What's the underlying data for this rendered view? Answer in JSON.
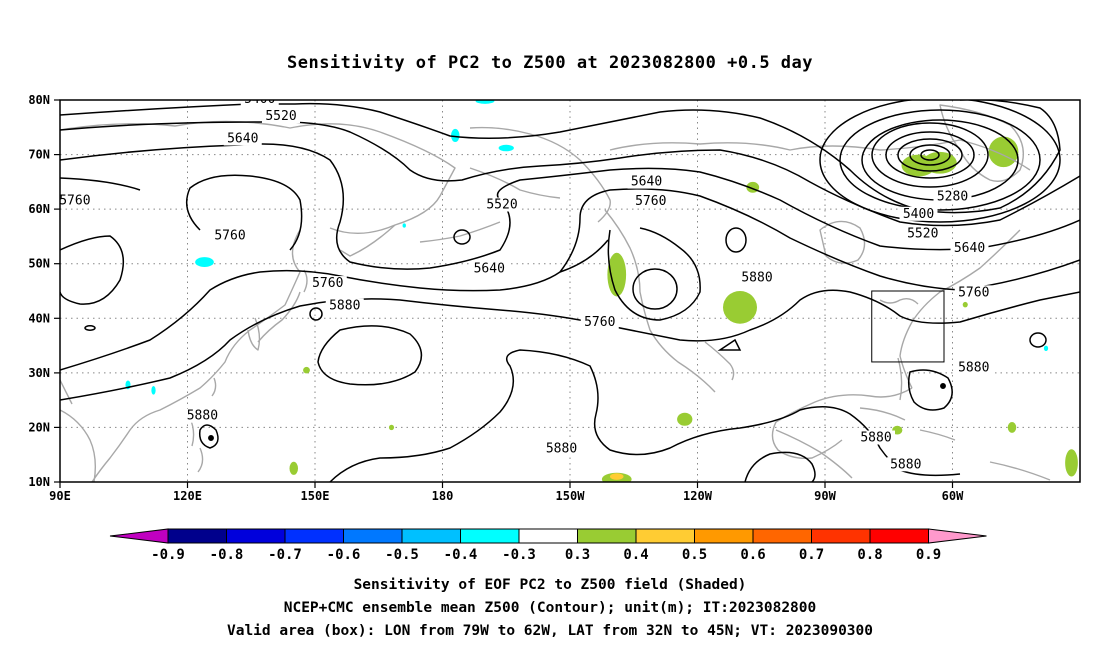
{
  "chart_data": {
    "type": "contour-map",
    "title": "Sensitivity of PC2 to Z500 at 2023082800 +0.5 day",
    "x_ticks": [
      "90E",
      "120E",
      "150E",
      "180",
      "150W",
      "120W",
      "90W",
      "60W"
    ],
    "y_ticks": [
      "10N",
      "20N",
      "30N",
      "40N",
      "50N",
      "60N",
      "70N",
      "80N"
    ],
    "lon_range": [
      90,
      330
    ],
    "lat_range": [
      10,
      80
    ],
    "grid": "dotted",
    "colorbar": {
      "labels": [
        "-0.9",
        "-0.8",
        "-0.7",
        "-0.6",
        "-0.5",
        "-0.4",
        "-0.3",
        "0.3",
        "0.4",
        "0.5",
        "0.6",
        "0.7",
        "0.8",
        "0.9"
      ],
      "colors": [
        "#c000c0",
        "#00008c",
        "#0000dc",
        "#0030ff",
        "#0078ff",
        "#00c0ff",
        "#00ffff",
        "#ffffff",
        "#99cc33",
        "#ffcc33",
        "#ff9900",
        "#ff6600",
        "#ff3300",
        "#ff0000",
        "#ff99cc"
      ]
    },
    "contour_labels": [
      {
        "text": "5400",
        "lon": 137,
        "lat": 79.6
      },
      {
        "text": "5520",
        "lon": 142,
        "lat": 76.5
      },
      {
        "text": "5640",
        "lon": 133,
        "lat": 72.4
      },
      {
        "text": "5760",
        "lon": 93.5,
        "lat": 61.0
      },
      {
        "text": "5760",
        "lon": 130,
        "lat": 54.6
      },
      {
        "text": "5520",
        "lon": 194,
        "lat": 60.3
      },
      {
        "text": "5640",
        "lon": 228,
        "lat": 64.5
      },
      {
        "text": "5760",
        "lon": 229,
        "lat": 60.9
      },
      {
        "text": "5280",
        "lon": 300,
        "lat": 61.8
      },
      {
        "text": "5400",
        "lon": 292,
        "lat": 58.6
      },
      {
        "text": "5520",
        "lon": 293,
        "lat": 55.0
      },
      {
        "text": "5640",
        "lon": 304,
        "lat": 52.3
      },
      {
        "text": "5640",
        "lon": 191,
        "lat": 48.6
      },
      {
        "text": "5760",
        "lon": 153,
        "lat": 45.9
      },
      {
        "text": "5880",
        "lon": 157,
        "lat": 41.8
      },
      {
        "text": "5880",
        "lon": 254,
        "lat": 46.9
      },
      {
        "text": "5760",
        "lon": 305,
        "lat": 44.2
      },
      {
        "text": "5760",
        "lon": 217,
        "lat": 38.8
      },
      {
        "text": "5880",
        "lon": 123.5,
        "lat": 21.6
      },
      {
        "text": "5880",
        "lon": 305,
        "lat": 30.4
      },
      {
        "text": "5880",
        "lon": 282,
        "lat": 17.6
      },
      {
        "text": "5880",
        "lon": 208,
        "lat": 15.6
      },
      {
        "text": "5880",
        "lon": 289,
        "lat": 12.7
      }
    ],
    "valid_box": {
      "lon": [
        281,
        298
      ],
      "lat": [
        32,
        45
      ]
    },
    "shaded": [
      {
        "color": "#99cc33",
        "lon": 221,
        "lat": 48,
        "rx": 2.2,
        "ry": 4
      },
      {
        "color": "#99cc33",
        "lon": 292,
        "lat": 68,
        "rx": 4,
        "ry": 2
      },
      {
        "color": "#99cc33",
        "lon": 297,
        "lat": 68.5,
        "rx": 4,
        "ry": 2
      },
      {
        "color": "#99cc33",
        "lon": 312,
        "lat": 70.5,
        "rx": 3.5,
        "ry": 2.8
      },
      {
        "color": "#99cc33",
        "lon": 250,
        "lat": 42,
        "rx": 4,
        "ry": 3
      },
      {
        "color": "#99cc33",
        "lon": 253,
        "lat": 64,
        "rx": 1.5,
        "ry": 1
      },
      {
        "color": "#99cc33",
        "lon": 221,
        "lat": 10.5,
        "rx": 3.5,
        "ry": 1.2
      },
      {
        "color": "#ffcc33",
        "lon": 221,
        "lat": 11,
        "rx": 1.6,
        "ry": 0.6
      },
      {
        "color": "#99cc33",
        "lon": 237,
        "lat": 21.5,
        "rx": 1.8,
        "ry": 1.2
      },
      {
        "color": "#99cc33",
        "lon": 287,
        "lat": 19.5,
        "rx": 1.2,
        "ry": 0.8
      },
      {
        "color": "#99cc33",
        "lon": 314,
        "lat": 20,
        "rx": 1,
        "ry": 1
      },
      {
        "color": "#99cc33",
        "lon": 332,
        "lat": 26,
        "rx": 1.5,
        "ry": 0.7
      },
      {
        "color": "#99cc33",
        "lon": 328,
        "lat": 13.5,
        "rx": 1.5,
        "ry": 2.5
      },
      {
        "color": "#99cc33",
        "lon": 145,
        "lat": 12.5,
        "rx": 1,
        "ry": 1.2
      },
      {
        "color": "#99cc33",
        "lon": 148,
        "lat": 30.5,
        "rx": 0.8,
        "ry": 0.6
      },
      {
        "color": "#99cc33",
        "lon": 168,
        "lat": 20,
        "rx": 0.6,
        "ry": 0.5
      },
      {
        "color": "#99cc33",
        "lon": 303,
        "lat": 42.5,
        "rx": 0.6,
        "ry": 0.5
      },
      {
        "color": "#00ffff",
        "lon": 124,
        "lat": 50.3,
        "rx": 2.2,
        "ry": 0.9
      },
      {
        "color": "#00ffff",
        "lon": 190,
        "lat": 79.8,
        "rx": 2.2,
        "ry": 0.5
      },
      {
        "color": "#00ffff",
        "lon": 183,
        "lat": 73.5,
        "rx": 1,
        "ry": 1.2
      },
      {
        "color": "#00ffff",
        "lon": 195,
        "lat": 71.2,
        "rx": 1.8,
        "ry": 0.6
      },
      {
        "color": "#00ffff",
        "lon": 106,
        "lat": 27.8,
        "rx": 0.6,
        "ry": 0.8
      },
      {
        "color": "#00ffff",
        "lon": 112,
        "lat": 26.8,
        "rx": 0.5,
        "ry": 0.8
      },
      {
        "color": "#00ffff",
        "lon": 171,
        "lat": 57,
        "rx": 0.4,
        "ry": 0.4
      },
      {
        "color": "#00ffff",
        "lon": 322,
        "lat": 34.5,
        "rx": 0.5,
        "ry": 0.5
      }
    ]
  },
  "captions": [
    "Sensitivity of EOF PC2 to Z500 field (Shaded)",
    "NCEP+CMC ensemble mean Z500 (Contour); unit(m); IT:2023082800",
    "Valid area (box): LON from 79W to 62W, LAT from 32N to 45N; VT: 2023090300"
  ]
}
